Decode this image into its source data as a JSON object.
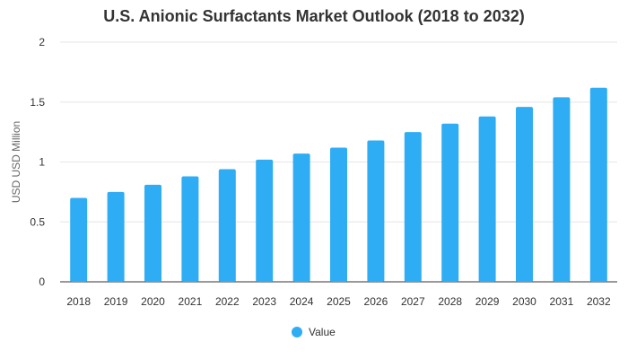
{
  "chart_data": {
    "type": "bar",
    "title": "U.S. Anionic Surfactants Market Outlook (2018 to 2032)",
    "xlabel": "",
    "ylabel": "USD USD Million",
    "categories": [
      "2018",
      "2019",
      "2020",
      "2021",
      "2022",
      "2023",
      "2024",
      "2025",
      "2026",
      "2027",
      "2028",
      "2029",
      "2030",
      "2031",
      "2032"
    ],
    "series": [
      {
        "name": "Value",
        "color": "#2EADF5",
        "values": [
          0.7,
          0.75,
          0.81,
          0.88,
          0.94,
          1.02,
          1.07,
          1.12,
          1.18,
          1.25,
          1.32,
          1.38,
          1.46,
          1.54,
          1.62
        ]
      }
    ],
    "ylim": [
      0,
      2
    ],
    "yticks": [
      "0",
      "0.5",
      "1",
      "1.5",
      "2"
    ],
    "grid": true,
    "legend_position": "bottom-center"
  }
}
